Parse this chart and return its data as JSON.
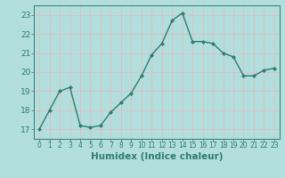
{
  "x": [
    0,
    1,
    2,
    3,
    4,
    5,
    6,
    7,
    8,
    9,
    10,
    11,
    12,
    13,
    14,
    15,
    16,
    17,
    18,
    19,
    20,
    21,
    22,
    23
  ],
  "y": [
    17.0,
    18.0,
    19.0,
    19.2,
    17.2,
    17.1,
    17.2,
    17.9,
    18.4,
    18.9,
    19.8,
    20.9,
    21.5,
    22.7,
    23.1,
    21.6,
    21.6,
    21.5,
    21.0,
    20.8,
    19.8,
    19.8,
    20.1,
    20.2
  ],
  "line_color": "#2e7d6e",
  "marker": "D",
  "marker_size": 2.0,
  "line_width": 1.0,
  "xlabel": "Humidex (Indice chaleur)",
  "xlim": [
    -0.5,
    23.5
  ],
  "ylim": [
    16.5,
    23.5
  ],
  "yticks": [
    17,
    18,
    19,
    20,
    21,
    22,
    23
  ],
  "xticks": [
    0,
    1,
    2,
    3,
    4,
    5,
    6,
    7,
    8,
    9,
    10,
    11,
    12,
    13,
    14,
    15,
    16,
    17,
    18,
    19,
    20,
    21,
    22,
    23
  ],
  "bg_color": "#b2dede",
  "grid_color": "#e8b8b8",
  "tick_color": "#2e7d6e",
  "label_color": "#2e7d6e",
  "xlabel_fontsize": 7.5,
  "ytick_fontsize": 6.5,
  "xtick_fontsize": 5.5
}
